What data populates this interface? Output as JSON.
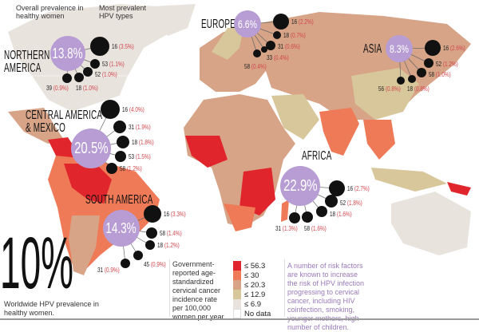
{
  "annotations": {
    "overall": "Overall prevalence in healthy women",
    "types": "Most prevalent HPV types"
  },
  "colors": {
    "purple": "#b79dd3",
    "black": "#111111",
    "level_1": "#e0262c",
    "level_2": "#ef7a57",
    "level_3": "#d7a488",
    "level_4": "#d8c79a",
    "level_5": "#e9e3dd",
    "no_data": "#ffffff",
    "pct_text": "#d0454c",
    "risk_text": "#9a7ab8"
  },
  "regions": [
    {
      "name": "NORTHERN AMERICA",
      "prevalence": "13.8%",
      "types": [
        {
          "type": "16",
          "pct": "(3.5%)"
        },
        {
          "type": "53",
          "pct": "(1.1%)"
        },
        {
          "type": "52",
          "pct": "(1.0%)"
        },
        {
          "type": "18",
          "pct": "(1.0%)"
        },
        {
          "type": "39",
          "pct": "(0.9%)"
        }
      ]
    },
    {
      "name": "CENTRAL AMERICA & MEXICO",
      "prevalence": "20.5%",
      "types": [
        {
          "type": "16",
          "pct": "(4.0%)"
        },
        {
          "type": "31",
          "pct": "(1.9%)"
        },
        {
          "type": "18",
          "pct": "(1.8%)"
        },
        {
          "type": "53",
          "pct": "(1.5%)"
        },
        {
          "type": "58",
          "pct": "(1.2%)"
        }
      ]
    },
    {
      "name": "SOUTH AMERICA",
      "prevalence": "14.3%",
      "types": [
        {
          "type": "16",
          "pct": "(3.3%)"
        },
        {
          "type": "58",
          "pct": "(1.4%)"
        },
        {
          "type": "18",
          "pct": "(1.2%)"
        },
        {
          "type": "45",
          "pct": "(0.9%)"
        },
        {
          "type": "31",
          "pct": "(0.9%)"
        }
      ]
    },
    {
      "name": "EUROPE",
      "prevalence": "6.6%",
      "types": [
        {
          "type": "16",
          "pct": "(2.2%)"
        },
        {
          "type": "18",
          "pct": "(0.7%)"
        },
        {
          "type": "31",
          "pct": "(0.6%)"
        },
        {
          "type": "33",
          "pct": "(0.4%)"
        },
        {
          "type": "58",
          "pct": "(0.4%)"
        }
      ]
    },
    {
      "name": "ASIA",
      "prevalence": "8.3%",
      "types": [
        {
          "type": "16",
          "pct": "(2.6%)"
        },
        {
          "type": "52",
          "pct": "(1.2%)"
        },
        {
          "type": "58",
          "pct": "(1.0%)"
        },
        {
          "type": "18",
          "pct": "(0.8%)"
        },
        {
          "type": "56",
          "pct": "(0.8%)"
        }
      ]
    },
    {
      "name": "AFRICA",
      "prevalence": "22.9%",
      "types": [
        {
          "type": "16",
          "pct": "(2.7%)"
        },
        {
          "type": "52",
          "pct": "(1.8%)"
        },
        {
          "type": "18",
          "pct": "(1.6%)"
        },
        {
          "type": "58",
          "pct": "(1.6%)"
        },
        {
          "type": "31",
          "pct": "(1.3%)"
        }
      ]
    }
  ],
  "worldwide": {
    "value": "10%",
    "caption": "Worldwide HPV prevalence in healthy women."
  },
  "legend": {
    "description": "Government-reported age-standardized cervical cancer incidence rate per 100,000 women per year.",
    "items": [
      "≤ 56.3",
      "≤ 30",
      "≤ 20.3",
      "≤ 12.9",
      "≤ 6.9",
      "No data"
    ]
  },
  "risk_note": "A number of risk factors are known to increase the risk of HPV infection progressing to cervical cancer, including HIV coinfection, smoking, younger mothers, high number of children."
}
